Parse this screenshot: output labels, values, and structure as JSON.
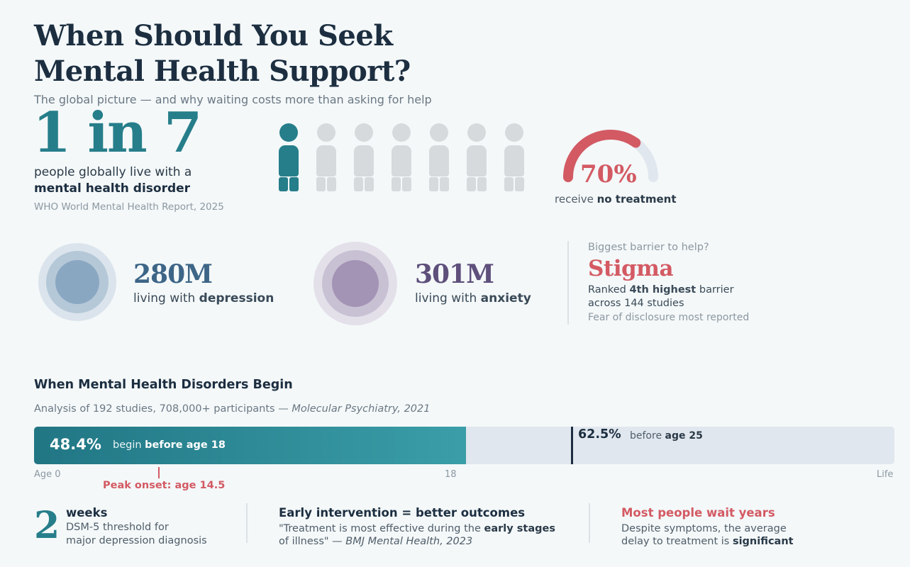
{
  "header": {
    "title": "When Should You Seek Mental Health Support?",
    "subtitle": "The global picture — and why waiting costs more than asking for help"
  },
  "hero": {
    "big_stat": "1 in 7",
    "line1": "people globally live with a",
    "line2": "mental health disorder",
    "source": "WHO World Mental Health Report, 2025",
    "people_total": 7,
    "people_highlighted": 1,
    "highlight_color": "#267e8a"
  },
  "treatment_gauge": {
    "value": "70%",
    "fraction": 0.7,
    "label_prefix": "receive ",
    "label_bold": "no treatment",
    "color": "#d35a63"
  },
  "stats": {
    "depression": {
      "value": "280M",
      "prefix": "living with ",
      "bold": "depression",
      "color": "#3d6587"
    },
    "anxiety": {
      "value": "301M",
      "prefix": "living with ",
      "bold": "anxiety",
      "color": "#5e4f7b"
    }
  },
  "barrier": {
    "question": "Biggest barrier to help?",
    "answer": "Stigma",
    "line1_prefix": "Ranked ",
    "line1_bold": "4th highest",
    "line1_suffix": " barrier",
    "line2": "across 144 studies",
    "note": "Fear of disclosure most reported"
  },
  "onset": {
    "title": "When Mental Health Disorders Begin",
    "source_prefix": "Analysis of 192 studies, 708,000+ participants — ",
    "source_italic": "Molecular Psychiatry, 2021",
    "before18_value": "48.4%",
    "before18_fraction": 0.484,
    "before18_prefix": "begin ",
    "before18_bold": "before age 18",
    "before25_value": "62.5%",
    "before25_fraction": 0.625,
    "before25_prefix": "before ",
    "before25_bold": "age 25",
    "axis_start": "Age 0",
    "axis_mid": "18",
    "axis_end": "Life",
    "peak_prefix": "Peak onset: ",
    "peak_bold": "age 14.5"
  },
  "cards": {
    "weeks": {
      "number": "2",
      "unit": "weeks",
      "line1": "DSM-5 threshold for",
      "line2": "major depression diagnosis"
    },
    "early": {
      "title": "Early intervention = better outcomes",
      "line1_prefix": "\"Treatment is most effective during the ",
      "line1_bold": "early stages",
      "line2_prefix": "of illness\" — ",
      "line2_italic": "BMJ Mental Health, 2023"
    },
    "wait": {
      "title": "Most people wait years",
      "line1": "Despite symptoms, the average",
      "line2_prefix": "delay to treatment is ",
      "line2_bold": "significant"
    }
  }
}
